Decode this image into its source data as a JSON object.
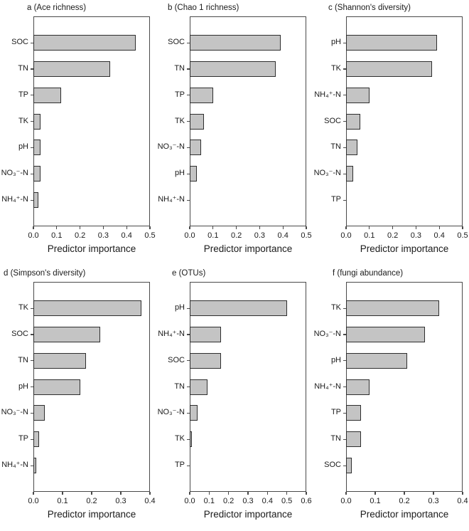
{
  "figure": {
    "background": "#ffffff",
    "bar_fill": "#c4c4c4",
    "bar_border": "#2e2e2e",
    "axis_color": "#4a4a4a",
    "text_color": "#1a1a1a",
    "shared_xlabel": "Predictor importance"
  },
  "chart_data": [
    {
      "type": "bar",
      "orientation": "horizontal",
      "title": "a (Ace richness)",
      "categories": [
        "SOC",
        "TN",
        "TP",
        "TK",
        "pH",
        "NO₃⁻-N",
        "NH₄⁺-N"
      ],
      "values": [
        0.44,
        0.33,
        0.12,
        0.03,
        0.03,
        0.03,
        0.02
      ],
      "xlabel": "Predictor importance",
      "xlim": [
        0,
        0.5
      ],
      "xticks": [
        0.0,
        0.1,
        0.2,
        0.3,
        0.4,
        0.5
      ],
      "grid": false,
      "legend": false
    },
    {
      "type": "bar",
      "orientation": "horizontal",
      "title": "b (Chao 1 richness)",
      "categories": [
        "SOC",
        "TN",
        "TP",
        "TK",
        "NO₃⁻-N",
        "pH",
        "NH₄⁺-N"
      ],
      "values": [
        0.39,
        0.37,
        0.1,
        0.06,
        0.05,
        0.03,
        0.0
      ],
      "xlabel": "Predictor importance",
      "xlim": [
        0,
        0.5
      ],
      "xticks": [
        0.0,
        0.1,
        0.2,
        0.3,
        0.4,
        0.5
      ],
      "grid": false,
      "legend": false
    },
    {
      "type": "bar",
      "orientation": "horizontal",
      "title": "c (Shannon's diversity)",
      "categories": [
        "pH",
        "TK",
        "NH₄⁺-N",
        "SOC",
        "TN",
        "NO₃⁻-N",
        "TP"
      ],
      "values": [
        0.39,
        0.37,
        0.1,
        0.06,
        0.05,
        0.03,
        0.0
      ],
      "xlabel": "Predictor importance",
      "xlim": [
        0,
        0.5
      ],
      "xticks": [
        0.0,
        0.1,
        0.2,
        0.3,
        0.4,
        0.5
      ],
      "grid": false,
      "legend": false
    },
    {
      "type": "bar",
      "orientation": "horizontal",
      "title": "d (Simpson's diversity)",
      "categories": [
        "TK",
        "SOC",
        "TN",
        "pH",
        "NO₃⁻-N",
        "TP",
        "NH₄⁺-N"
      ],
      "values": [
        0.37,
        0.23,
        0.18,
        0.16,
        0.04,
        0.02,
        0.01
      ],
      "xlabel": "Predictor importance",
      "xlim": [
        0,
        0.4
      ],
      "xticks": [
        0.0,
        0.1,
        0.2,
        0.3,
        0.4
      ],
      "grid": false,
      "legend": false
    },
    {
      "type": "bar",
      "orientation": "horizontal",
      "title": "e (OTUs)",
      "categories": [
        "pH",
        "NH₄⁺-N",
        "SOC",
        "TN",
        "NO₃⁻-N",
        "TK",
        "TP"
      ],
      "values": [
        0.5,
        0.16,
        0.16,
        0.09,
        0.04,
        0.01,
        0.0
      ],
      "xlabel": "Predictor importance",
      "xlim": [
        0,
        0.6
      ],
      "xticks": [
        0.0,
        0.1,
        0.2,
        0.3,
        0.4,
        0.5,
        0.6
      ],
      "grid": false,
      "legend": false
    },
    {
      "type": "bar",
      "orientation": "horizontal",
      "title": "f (fungi abundance)",
      "categories": [
        "TK",
        "NO₃⁻-N",
        "pH",
        "NH₄⁺-N",
        "TP",
        "TN",
        "SOC"
      ],
      "values": [
        0.32,
        0.27,
        0.21,
        0.08,
        0.05,
        0.05,
        0.02
      ],
      "xlabel": "Predictor importance",
      "xlim": [
        0,
        0.4
      ],
      "xticks": [
        0.0,
        0.1,
        0.2,
        0.3,
        0.4
      ],
      "grid": false,
      "legend": false
    }
  ]
}
